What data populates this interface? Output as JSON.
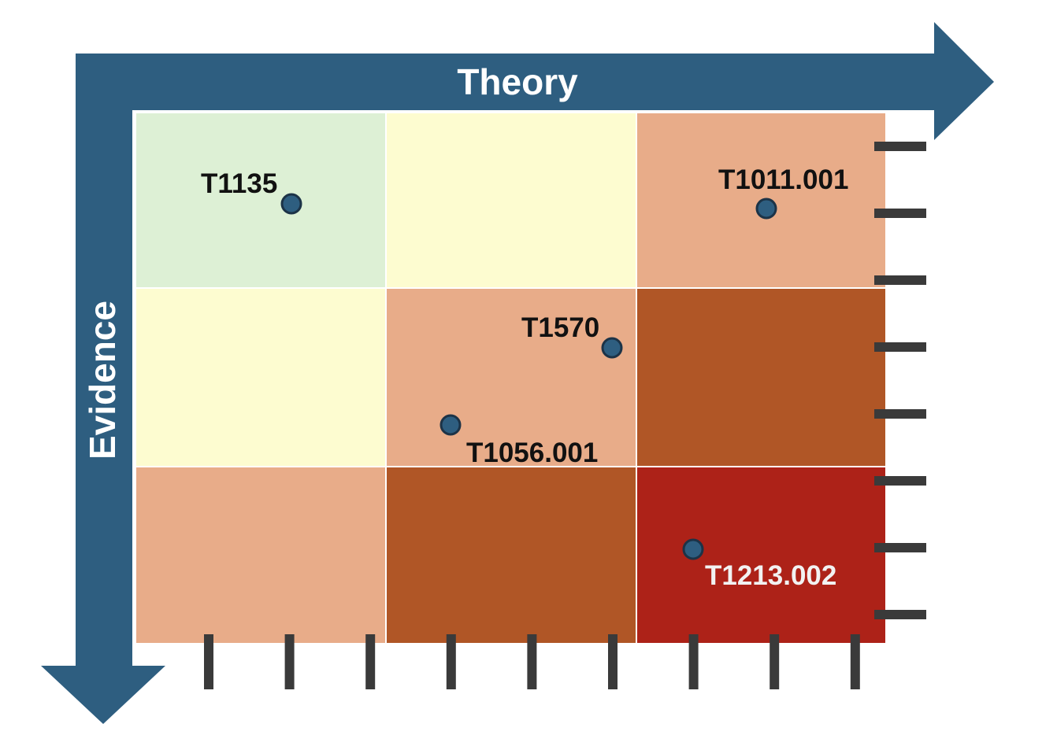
{
  "axes": {
    "x_label": "Theory",
    "y_label": "Evidence",
    "arrow_color": "#2e5e80",
    "tick_color": "#3a3a3a"
  },
  "grid": {
    "rows": 3,
    "cols": 3,
    "cells": [
      [
        "#ddf0d5",
        "#fdfcd0",
        "#e8ac89"
      ],
      [
        "#fdfcd0",
        "#e8ac89",
        "#b05626"
      ],
      [
        "#e8ac89",
        "#b05626",
        "#ad2218"
      ]
    ],
    "cell_border_color": "#ffffff"
  },
  "ticks": {
    "x_count": 9,
    "y_count": 8
  },
  "points": [
    {
      "id": "T1135",
      "label": "T1135",
      "label_color": "#111111"
    },
    {
      "id": "T1011.001",
      "label": "T1011.001",
      "label_color": "#111111"
    },
    {
      "id": "T1570",
      "label": "T1570",
      "label_color": "#111111"
    },
    {
      "id": "T1056.001",
      "label": "T1056.001",
      "label_color": "#111111"
    },
    {
      "id": "T1213.002",
      "label": "T1213.002",
      "label_color": "#f2f2f2"
    }
  ],
  "point_style": {
    "fill": "#2e5e80",
    "stroke": "#1c3347"
  }
}
